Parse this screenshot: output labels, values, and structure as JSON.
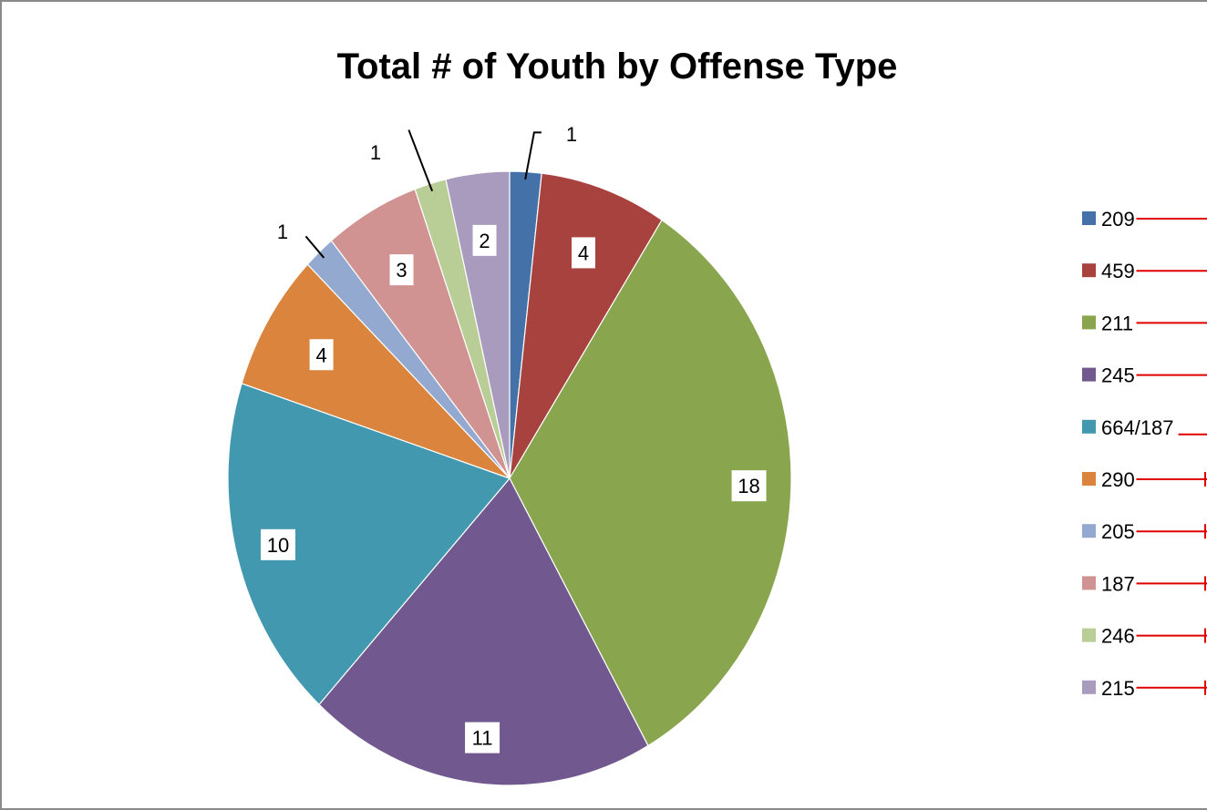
{
  "chart_data": {
    "type": "pie",
    "title": "Total # of Youth by Offense Type",
    "legend_position": "right",
    "slices": [
      {
        "label": "209",
        "value": 1,
        "color": "#4472A8"
      },
      {
        "label": "459",
        "value": 4,
        "color": "#A8423F"
      },
      {
        "label": "211",
        "value": 18,
        "color": "#89A54E"
      },
      {
        "label": "245",
        "value": 11,
        "color": "#71588F"
      },
      {
        "label": "664/187",
        "value": 10,
        "color": "#4198AF"
      },
      {
        "label": "290",
        "value": 4,
        "color": "#DB843D"
      },
      {
        "label": "205",
        "value": 1,
        "color": "#93A9CF"
      },
      {
        "label": "187",
        "value": 3,
        "color": "#D19392"
      },
      {
        "label": "246",
        "value": 1,
        "color": "#B9CD96"
      },
      {
        "label": "215",
        "value": 2,
        "color": "#A99BBD"
      }
    ],
    "annotation_color": "#E00000"
  }
}
